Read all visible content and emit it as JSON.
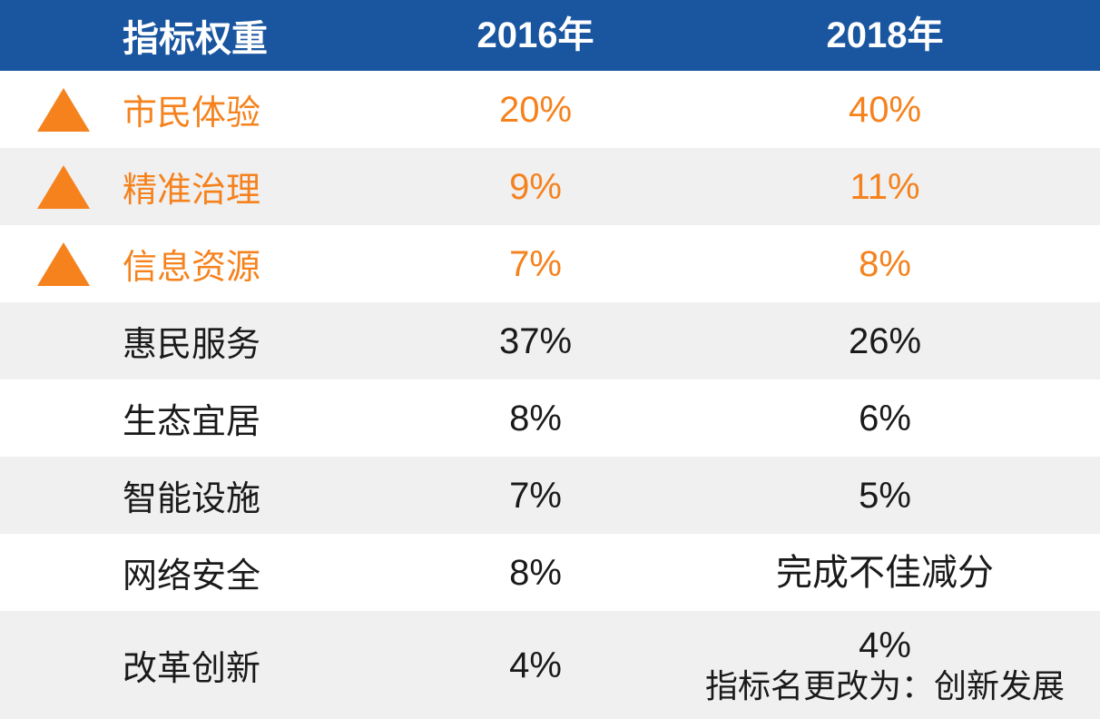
{
  "chart_data": {
    "type": "table",
    "columns": [
      "指标权重",
      "2016年",
      "2018年"
    ],
    "rows": [
      [
        "市民体验",
        "20%",
        "40%"
      ],
      [
        "精准治理",
        "9%",
        "11%"
      ],
      [
        "信息资源",
        "7%",
        "8%"
      ],
      [
        "惠民服务",
        "37%",
        "26%"
      ],
      [
        "生态宜居",
        "8%",
        "6%"
      ],
      [
        "智能设施",
        "7%",
        "5%"
      ],
      [
        "网络安全",
        "8%",
        "完成不佳减分"
      ],
      [
        "改革创新",
        "4%",
        "4%\n指标名更改为：创新发展"
      ]
    ],
    "highlighted_rows": [
      "市民体验",
      "精准治理",
      "信息资源"
    ],
    "legend_position": "none",
    "grid": false
  },
  "table": {
    "header": {
      "indicator": "指标权重",
      "y2016": "2016年",
      "y2018": "2018年"
    },
    "rows": [
      {
        "label": "市民体验",
        "v2016": "20%",
        "v2018": "40%",
        "marker": "up-triangle-icon",
        "highlighted": true
      },
      {
        "label": "精准治理",
        "v2016": "9%",
        "v2018": "11%",
        "marker": "up-triangle-icon",
        "highlighted": true
      },
      {
        "label": "信息资源",
        "v2016": "7%",
        "v2018": "8%",
        "marker": "up-triangle-icon",
        "highlighted": true
      },
      {
        "label": "惠民服务",
        "v2016": "37%",
        "v2018": "26%",
        "highlighted": false
      },
      {
        "label": "生态宜居",
        "v2016": "8%",
        "v2018": "6%",
        "highlighted": false
      },
      {
        "label": "智能设施",
        "v2016": "7%",
        "v2018": "5%",
        "highlighted": false
      },
      {
        "label": "网络安全",
        "v2016": "8%",
        "v2018": "完成不佳减分",
        "highlighted": false
      },
      {
        "label": "改革创新",
        "v2016": "4%",
        "v2018": "4%",
        "note": "指标名更改为：创新发展",
        "highlighted": false
      }
    ],
    "colors": {
      "header_bg": "#1A56A0",
      "header_text": "#FFFFFF",
      "accent_orange": "#F5821D",
      "row_alt_bg": "#F0F0F1",
      "body_text": "#1A1A1A"
    }
  }
}
